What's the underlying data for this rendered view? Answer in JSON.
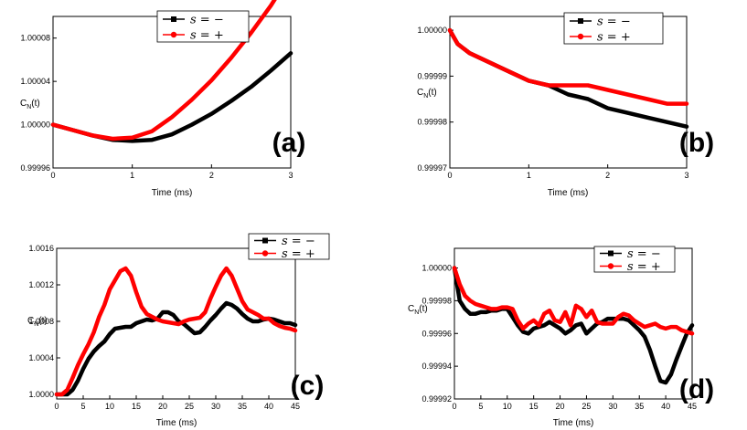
{
  "chart_data": [
    {
      "type": "line",
      "panel_label": "(a)",
      "xlabel": "Time (ms)",
      "ylabel": "C_N(t)",
      "xlim": [
        0,
        3
      ],
      "ylim": [
        0.99996,
        1.0001
      ],
      "xticks": [
        0,
        1,
        2,
        3
      ],
      "yticks": [
        0.99996,
        1.0,
        1.00004,
        1.00008
      ],
      "ytick_labels": [
        "0.99996",
        "1.00000",
        "1.00004",
        "1.00008"
      ],
      "legend_placement": "top-center",
      "series": [
        {
          "name": "s = −",
          "color": "#000000",
          "x": [
            0,
            0.25,
            0.5,
            0.75,
            1.0,
            1.25,
            1.5,
            1.75,
            2.0,
            2.25,
            2.5,
            2.75,
            3.0
          ],
          "y": [
            1.0,
            0.999995,
            0.99999,
            0.999986,
            0.999985,
            0.999986,
            0.999991,
            1.0,
            1.00001,
            1.000022,
            1.000035,
            1.00005,
            1.000066
          ]
        },
        {
          "name": "s = +",
          "color": "#ff0000",
          "x": [
            0,
            0.25,
            0.5,
            0.75,
            1.0,
            1.25,
            1.5,
            1.75,
            2.0,
            2.25,
            2.5,
            2.75,
            2.93
          ],
          "y": [
            1.0,
            0.999995,
            0.99999,
            0.999987,
            0.999988,
            0.999994,
            1.000007,
            1.000023,
            1.000041,
            1.000062,
            1.000085,
            1.00011,
            1.000131
          ]
        }
      ]
    },
    {
      "type": "line",
      "panel_label": "(b)",
      "xlabel": "Time (ms)",
      "ylabel": "C_N(t)",
      "xlim": [
        0,
        3
      ],
      "ylim": [
        0.99997,
        1.000003
      ],
      "xticks": [
        0,
        1,
        2,
        3
      ],
      "yticks": [
        0.99997,
        0.99998,
        0.99999,
        1.0
      ],
      "ytick_labels": [
        "0.99997",
        "0.99998",
        "0.99999",
        "1.00000"
      ],
      "legend_placement": "top-right",
      "series": [
        {
          "name": "s = −",
          "color": "#000000",
          "x": [
            0,
            0.1,
            0.25,
            0.5,
            0.75,
            1.0,
            1.25,
            1.5,
            1.75,
            2.0,
            2.25,
            2.5,
            2.75,
            3.0
          ],
          "y": [
            1.0,
            0.999997,
            0.999995,
            0.999993,
            0.999991,
            0.999989,
            0.999988,
            0.999986,
            0.999985,
            0.999983,
            0.999982,
            0.999981,
            0.99998,
            0.999979
          ]
        },
        {
          "name": "s = +",
          "color": "#ff0000",
          "x": [
            0,
            0.1,
            0.25,
            0.5,
            0.75,
            1.0,
            1.25,
            1.5,
            1.75,
            2.0,
            2.25,
            2.5,
            2.75,
            3.0
          ],
          "y": [
            1.0,
            0.999997,
            0.999995,
            0.999993,
            0.999991,
            0.999989,
            0.999988,
            0.999988,
            0.999988,
            0.999987,
            0.999986,
            0.999985,
            0.999984,
            0.999984
          ]
        }
      ]
    },
    {
      "type": "line",
      "panel_label": "(c)",
      "xlabel": "Time (ms)",
      "ylabel": "C_N(t)",
      "xlim": [
        0,
        45
      ],
      "ylim": [
        0.99995,
        1.0016
      ],
      "xticks": [
        0,
        5,
        10,
        15,
        20,
        25,
        30,
        35,
        40,
        45
      ],
      "yticks": [
        1.0,
        1.0004,
        1.0008,
        1.0012,
        1.0016
      ],
      "ytick_labels": [
        "1.0000",
        "1.0004",
        "1.0008",
        "1.0012",
        "1.0016"
      ],
      "legend_placement": "top-right",
      "series": [
        {
          "name": "s = −",
          "color": "#000000",
          "x": [
            0,
            1,
            2,
            3,
            4,
            5,
            6,
            7,
            8,
            9,
            10,
            11,
            12,
            13,
            14,
            15,
            16,
            17,
            18,
            19,
            20,
            21,
            22,
            23,
            24,
            25,
            26,
            27,
            28,
            29,
            30,
            31,
            32,
            33,
            34,
            35,
            36,
            37,
            38,
            39,
            40,
            41,
            42,
            43,
            44,
            45
          ],
          "y": [
            1.0,
            1.0,
            1.0,
            1.00005,
            1.00015,
            1.00028,
            1.00039,
            1.00047,
            1.00053,
            1.00058,
            1.00066,
            1.00072,
            1.00073,
            1.00074,
            1.00074,
            1.00078,
            1.0008,
            1.00082,
            1.00081,
            1.00083,
            1.0009,
            1.0009,
            1.00087,
            1.0008,
            1.00077,
            1.00072,
            1.00067,
            1.00068,
            1.00074,
            1.00081,
            1.00087,
            1.00094,
            1.001,
            1.00098,
            1.00094,
            1.00088,
            1.00083,
            1.0008,
            1.0008,
            1.00082,
            1.00083,
            1.00082,
            1.0008,
            1.00078,
            1.00078,
            1.00076
          ]
        },
        {
          "name": "s = +",
          "color": "#ff0000",
          "x": [
            0,
            1,
            2,
            3,
            4,
            5,
            6,
            7,
            8,
            9,
            10,
            11,
            12,
            13,
            14,
            15,
            16,
            17,
            18,
            19,
            20,
            21,
            22,
            23,
            24,
            25,
            26,
            27,
            28,
            29,
            30,
            31,
            32,
            33,
            34,
            35,
            36,
            37,
            38,
            39,
            40,
            41,
            42,
            43,
            44,
            45
          ],
          "y": [
            1.0,
            1.0,
            1.00005,
            1.00018,
            1.00032,
            1.00044,
            1.00055,
            1.00068,
            1.00085,
            1.00098,
            1.00115,
            1.00125,
            1.00135,
            1.00138,
            1.0013,
            1.00112,
            1.00096,
            1.00088,
            1.00085,
            1.00082,
            1.0008,
            1.00079,
            1.00078,
            1.00077,
            1.0008,
            1.00082,
            1.00083,
            1.00084,
            1.0009,
            1.00105,
            1.00118,
            1.0013,
            1.00138,
            1.0013,
            1.00116,
            1.00102,
            1.00093,
            1.0009,
            1.00087,
            1.00083,
            1.00083,
            1.00078,
            1.00075,
            1.00073,
            1.00072,
            1.0007
          ]
        }
      ]
    },
    {
      "type": "line",
      "panel_label": "(d)",
      "xlabel": "Time (ms)",
      "ylabel": "C_N(t)",
      "xlim": [
        0,
        45
      ],
      "ylim": [
        0.99992,
        1.000012
      ],
      "xticks": [
        0,
        5,
        10,
        15,
        20,
        25,
        30,
        35,
        40,
        45
      ],
      "yticks": [
        0.99992,
        0.99994,
        0.99996,
        0.99998,
        1.0
      ],
      "ytick_labels": [
        "0.99992",
        "0.99994",
        "0.99996",
        "0.99998",
        "1.00000"
      ],
      "legend_placement": "top-right",
      "series": [
        {
          "name": "s = −",
          "color": "#000000",
          "x": [
            0,
            1,
            2,
            3,
            4,
            5,
            6,
            7,
            8,
            9,
            10,
            11,
            12,
            13,
            14,
            15,
            16,
            17,
            18,
            19,
            20,
            21,
            22,
            23,
            24,
            25,
            26,
            27,
            28,
            29,
            30,
            31,
            32,
            33,
            34,
            35,
            36,
            37,
            38,
            39,
            40,
            41,
            42,
            43,
            44,
            45
          ],
          "y": [
            1.0,
            0.99998,
            0.999975,
            0.999972,
            0.999972,
            0.999973,
            0.999973,
            0.999974,
            0.999974,
            0.999975,
            0.999975,
            0.99997,
            0.999965,
            0.999961,
            0.99996,
            0.999963,
            0.999964,
            0.999965,
            0.999967,
            0.999965,
            0.999963,
            0.99996,
            0.999962,
            0.999965,
            0.999966,
            0.99996,
            0.999963,
            0.999966,
            0.999967,
            0.999969,
            0.999969,
            0.999969,
            0.999969,
            0.999968,
            0.999965,
            0.999962,
            0.999958,
            0.99995,
            0.99994,
            0.999931,
            0.99993,
            0.999935,
            0.999944,
            0.999952,
            0.99996,
            0.999965
          ]
        },
        {
          "name": "s = +",
          "color": "#ff0000",
          "x": [
            0,
            1,
            2,
            3,
            4,
            5,
            6,
            7,
            8,
            9,
            10,
            11,
            12,
            13,
            14,
            15,
            16,
            17,
            18,
            19,
            20,
            21,
            22,
            23,
            24,
            25,
            26,
            27,
            28,
            29,
            30,
            31,
            32,
            33,
            34,
            35,
            36,
            37,
            38,
            39,
            40,
            41,
            42,
            43,
            44,
            45
          ],
          "y": [
            1.0,
            0.99999,
            0.999983,
            0.99998,
            0.999978,
            0.999977,
            0.999976,
            0.999975,
            0.999975,
            0.999976,
            0.999976,
            0.999975,
            0.999968,
            0.999963,
            0.999966,
            0.999968,
            0.999965,
            0.999972,
            0.999974,
            0.999968,
            0.999967,
            0.999973,
            0.999965,
            0.999977,
            0.999975,
            0.99997,
            0.999974,
            0.999967,
            0.999966,
            0.999966,
            0.999966,
            0.99997,
            0.999972,
            0.999971,
            0.999968,
            0.999966,
            0.999964,
            0.999965,
            0.999966,
            0.999964,
            0.999963,
            0.999964,
            0.999964,
            0.999962,
            0.999961,
            0.99996
          ]
        }
      ]
    }
  ]
}
